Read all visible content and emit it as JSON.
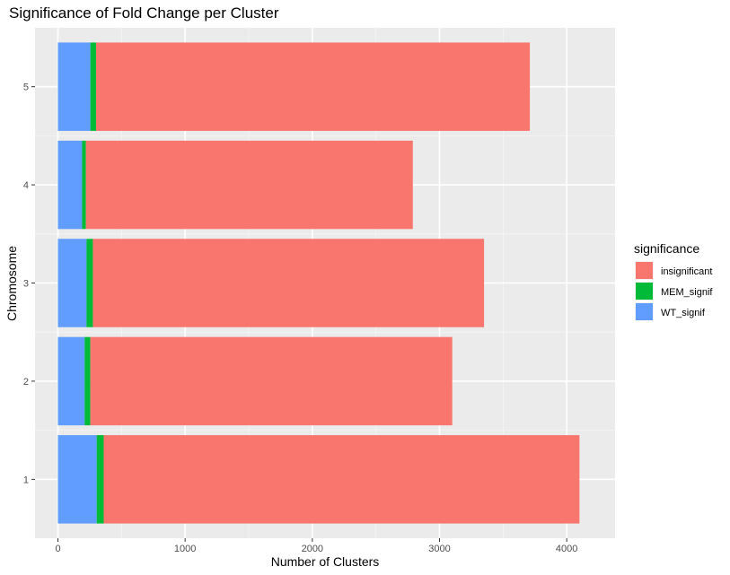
{
  "chart_data": {
    "type": "bar",
    "orientation": "horizontal",
    "stacked": true,
    "title": "Significance of Fold Change per Cluster",
    "xlabel": "Number of Clusters",
    "ylabel": "Chromosome",
    "categories": [
      "1",
      "2",
      "3",
      "4",
      "5"
    ],
    "xlim": [
      -180,
      4380
    ],
    "xticks": [
      0,
      1000,
      2000,
      3000,
      4000
    ],
    "xtick_labels": [
      "0",
      "1000",
      "2000",
      "3000",
      "4000"
    ],
    "grid": true,
    "legend": {
      "title": "significance",
      "placement": "right",
      "entries": [
        "insignificant",
        "MEM_signif",
        "WT_signif"
      ]
    },
    "series": [
      {
        "name": "WT_signif",
        "color": "#619CFF",
        "values": [
          305,
          210,
          225,
          190,
          255
        ]
      },
      {
        "name": "MEM_signif",
        "color": "#00BA38",
        "values": [
          55,
          45,
          50,
          30,
          45
        ]
      },
      {
        "name": "insignificant",
        "color": "#F8766D",
        "values": [
          3740,
          2845,
          3075,
          2570,
          3410
        ]
      }
    ],
    "colors": {
      "panel_background": "#EBEBEB",
      "grid_major": "#FFFFFF",
      "tick_text": "#4D4D4D"
    }
  }
}
